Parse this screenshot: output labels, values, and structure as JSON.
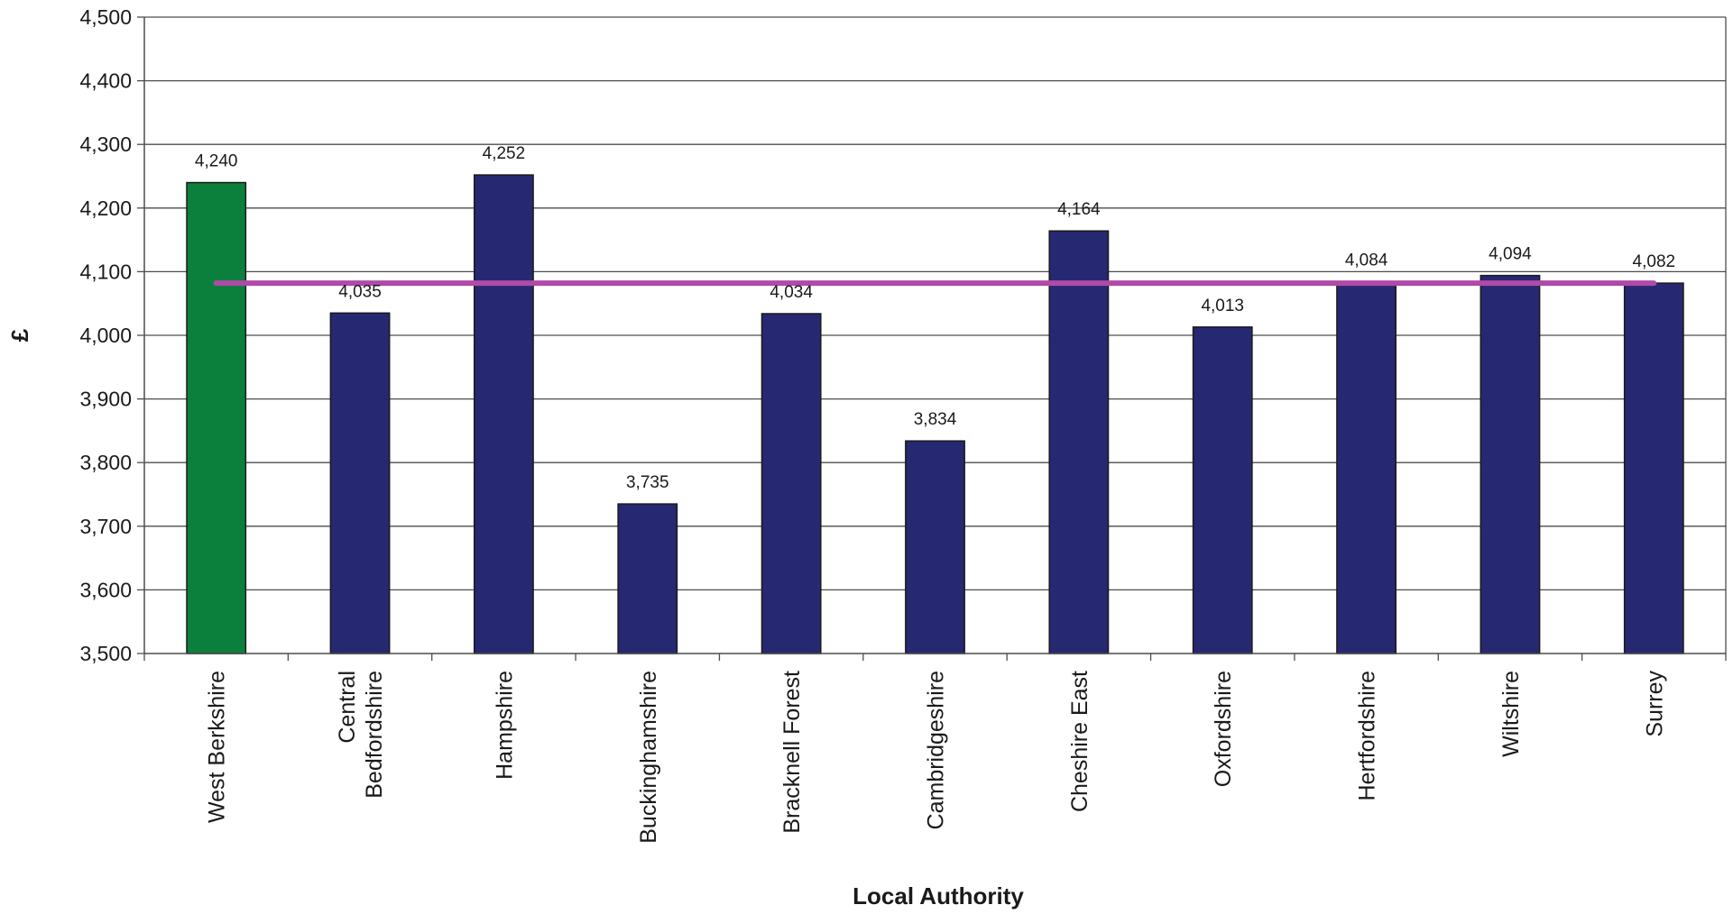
{
  "chart_data": {
    "type": "bar",
    "title": "",
    "xlabel": "Local Authority",
    "ylabel": "£",
    "ylim": [
      3500,
      4500
    ],
    "y_ticks": [
      3500,
      3600,
      3700,
      3800,
      3900,
      4000,
      4100,
      4200,
      4300,
      4400,
      4500
    ],
    "y_tick_labels": [
      "3,500",
      "3,600",
      "3,700",
      "3,800",
      "3,900",
      "4,000",
      "4,100",
      "4,200",
      "4,300",
      "4,400",
      "4,500"
    ],
    "grid": true,
    "categories": [
      "West Berkshire",
      "Central Bedfordshire",
      "Hampshire",
      "Buckinghamshire",
      "Bracknell Forest",
      "Cambridgeshire",
      "Cheshire East",
      "Oxfordshire",
      "Hertfordshire",
      "Wiltshire",
      "Surrey"
    ],
    "category_label_lines": [
      [
        "West Berkshire"
      ],
      [
        "Central",
        "Bedfordshire"
      ],
      [
        "Hampshire"
      ],
      [
        "Buckinghamshire"
      ],
      [
        "Bracknell Forest"
      ],
      [
        "Cambridgeshire"
      ],
      [
        "Cheshire East"
      ],
      [
        "Oxfordshire"
      ],
      [
        "Hertfordshire"
      ],
      [
        "Wiltshire"
      ],
      [
        "Surrey"
      ]
    ],
    "values": [
      4240,
      4035,
      4252,
      3735,
      4034,
      3834,
      4164,
      4013,
      4084,
      4094,
      4082
    ],
    "value_labels": [
      "4,240",
      "4,035",
      "4,252",
      "3,735",
      "4,034",
      "3,834",
      "4,164",
      "4,013",
      "4,084",
      "4,094",
      "4,082"
    ],
    "bar_colors": [
      "#0b7f3c",
      "#262872",
      "#262872",
      "#262872",
      "#262872",
      "#262872",
      "#262872",
      "#262872",
      "#262872",
      "#262872",
      "#262872"
    ],
    "reference_line": {
      "value": 4082,
      "color": "#b04aa8"
    },
    "colors": {
      "highlight": "#0b7f3c",
      "bar": "#262872",
      "gridline": "#4d4d4d",
      "axis": "#4d4d4d"
    }
  }
}
